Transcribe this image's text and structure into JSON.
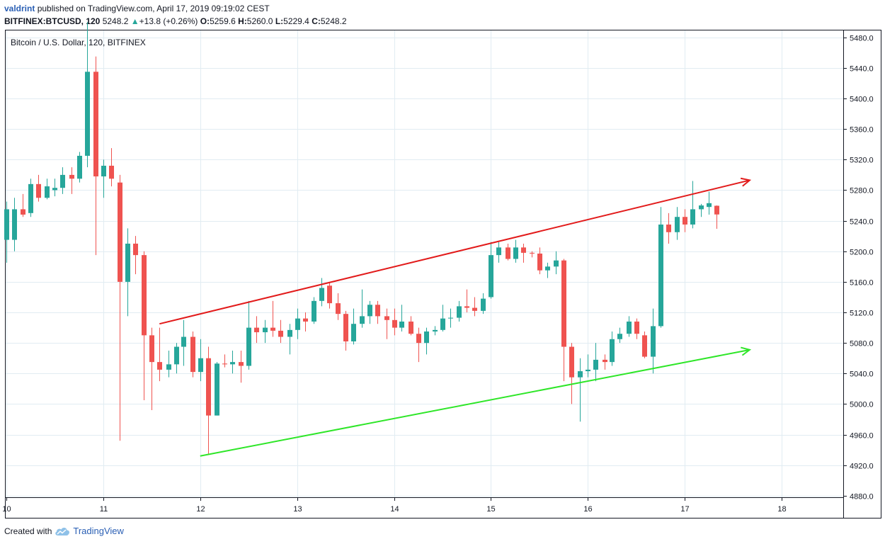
{
  "header": {
    "author": "valdrint",
    "published_text": "published on TradingView.com, April 17, 2019 09:19:02 CEST",
    "symbol": "BITFINEX:BTCUSD, 120",
    "last": "5248.2",
    "change_arrow": "▲",
    "change": "+13.8 (+0.26%)",
    "o_label": "O:",
    "o_value": "5259.6",
    "h_label": "H:",
    "h_value": "5260.0",
    "l_label": "L:",
    "l_value": "5229.4",
    "c_label": "C:",
    "c_value": "5248.2"
  },
  "footer": {
    "created_with": "Created with",
    "brand": "TradingView"
  },
  "colors": {
    "up": "#26a69a",
    "down": "#ef5350",
    "grid": "#e1ecf2",
    "resistance_line": "#e21b1b",
    "support_line": "#2ee628"
  },
  "chart_data": {
    "type": "candlestick",
    "legend": "Bitcoin / U.S. Dollar, 120, BITFINEX",
    "x_ticks": [
      "10",
      "11",
      "12",
      "13",
      "14",
      "15",
      "16",
      "17",
      "18"
    ],
    "x_tick_values": [
      10,
      11,
      12,
      13,
      14,
      15,
      16,
      17,
      18
    ],
    "xlim": [
      10,
      18.65
    ],
    "y_ticks": [
      "4880.0",
      "4920.0",
      "4960.0",
      "5000.0",
      "5040.0",
      "5080.0",
      "5120.0",
      "5160.0",
      "5200.0",
      "5240.0",
      "5280.0",
      "5320.0",
      "5360.0",
      "5400.0",
      "5440.0",
      "5480.0"
    ],
    "y_tick_values": [
      4880,
      4920,
      4960,
      5000,
      5040,
      5080,
      5120,
      5160,
      5200,
      5240,
      5280,
      5320,
      5360,
      5400,
      5440,
      5480
    ],
    "ylim": [
      4878,
      5490
    ],
    "grid": true,
    "candles": [
      {
        "t": 10.0,
        "o": 5215,
        "h": 5265,
        "l": 5185,
        "c": 5255
      },
      {
        "t": 10.08,
        "o": 5215,
        "h": 5270,
        "l": 5200,
        "c": 5255
      },
      {
        "t": 10.17,
        "o": 5255,
        "h": 5275,
        "l": 5245,
        "c": 5248
      },
      {
        "t": 10.25,
        "o": 5250,
        "h": 5295,
        "l": 5245,
        "c": 5288
      },
      {
        "t": 10.33,
        "o": 5288,
        "h": 5300,
        "l": 5265,
        "c": 5270
      },
      {
        "t": 10.42,
        "o": 5270,
        "h": 5295,
        "l": 5268,
        "c": 5285
      },
      {
        "t": 10.5,
        "o": 5280,
        "h": 5295,
        "l": 5272,
        "c": 5283
      },
      {
        "t": 10.58,
        "o": 5283,
        "h": 5310,
        "l": 5275,
        "c": 5300
      },
      {
        "t": 10.67,
        "o": 5300,
        "h": 5310,
        "l": 5275,
        "c": 5295
      },
      {
        "t": 10.75,
        "o": 5295,
        "h": 5330,
        "l": 5290,
        "c": 5325
      },
      {
        "t": 10.83,
        "o": 5325,
        "h": 5500,
        "l": 5310,
        "c": 5435
      },
      {
        "t": 10.92,
        "o": 5435,
        "h": 5455,
        "l": 5195,
        "c": 5298
      },
      {
        "t": 11.0,
        "o": 5298,
        "h": 5320,
        "l": 5270,
        "c": 5312
      },
      {
        "t": 11.08,
        "o": 5312,
        "h": 5335,
        "l": 5285,
        "c": 5295
      },
      {
        "t": 11.17,
        "o": 5290,
        "h": 5300,
        "l": 4952,
        "c": 5160
      },
      {
        "t": 11.25,
        "o": 5160,
        "h": 5230,
        "l": 5115,
        "c": 5210
      },
      {
        "t": 11.33,
        "o": 5210,
        "h": 5220,
        "l": 5170,
        "c": 5195
      },
      {
        "t": 11.42,
        "o": 5195,
        "h": 5200,
        "l": 5005,
        "c": 5090
      },
      {
        "t": 11.5,
        "o": 5090,
        "h": 5100,
        "l": 4992,
        "c": 5055
      },
      {
        "t": 11.58,
        "o": 5055,
        "h": 5100,
        "l": 5030,
        "c": 5045
      },
      {
        "t": 11.67,
        "o": 5045,
        "h": 5070,
        "l": 5035,
        "c": 5052
      },
      {
        "t": 11.75,
        "o": 5052,
        "h": 5080,
        "l": 5040,
        "c": 5075
      },
      {
        "t": 11.83,
        "o": 5075,
        "h": 5110,
        "l": 5050,
        "c": 5088
      },
      {
        "t": 11.92,
        "o": 5088,
        "h": 5095,
        "l": 5035,
        "c": 5042
      },
      {
        "t": 12.0,
        "o": 5042,
        "h": 5085,
        "l": 5030,
        "c": 5060
      },
      {
        "t": 12.08,
        "o": 5060,
        "h": 5075,
        "l": 4935,
        "c": 4985
      },
      {
        "t": 12.17,
        "o": 4985,
        "h": 5055,
        "l": 4985,
        "c": 5053
      },
      {
        "t": 12.25,
        "o": 5053,
        "h": 5065,
        "l": 5048,
        "c": 5052
      },
      {
        "t": 12.33,
        "o": 5052,
        "h": 5070,
        "l": 5040,
        "c": 5055
      },
      {
        "t": 12.42,
        "o": 5055,
        "h": 5070,
        "l": 5028,
        "c": 5050
      },
      {
        "t": 12.5,
        "o": 5050,
        "h": 5135,
        "l": 5045,
        "c": 5100
      },
      {
        "t": 12.58,
        "o": 5100,
        "h": 5115,
        "l": 5080,
        "c": 5094
      },
      {
        "t": 12.67,
        "o": 5094,
        "h": 5110,
        "l": 5080,
        "c": 5100
      },
      {
        "t": 12.75,
        "o": 5100,
        "h": 5135,
        "l": 5088,
        "c": 5096
      },
      {
        "t": 12.83,
        "o": 5096,
        "h": 5110,
        "l": 5080,
        "c": 5088
      },
      {
        "t": 12.92,
        "o": 5088,
        "h": 5105,
        "l": 5065,
        "c": 5097
      },
      {
        "t": 13.0,
        "o": 5097,
        "h": 5125,
        "l": 5085,
        "c": 5112
      },
      {
        "t": 13.08,
        "o": 5112,
        "h": 5120,
        "l": 5095,
        "c": 5108
      },
      {
        "t": 13.17,
        "o": 5108,
        "h": 5140,
        "l": 5105,
        "c": 5135
      },
      {
        "t": 13.25,
        "o": 5135,
        "h": 5165,
        "l": 5128,
        "c": 5152
      },
      {
        "t": 13.33,
        "o": 5155,
        "h": 5160,
        "l": 5125,
        "c": 5132
      },
      {
        "t": 13.42,
        "o": 5132,
        "h": 5145,
        "l": 5110,
        "c": 5118
      },
      {
        "t": 13.5,
        "o": 5118,
        "h": 5122,
        "l": 5070,
        "c": 5082
      },
      {
        "t": 13.58,
        "o": 5082,
        "h": 5125,
        "l": 5078,
        "c": 5105
      },
      {
        "t": 13.67,
        "o": 5105,
        "h": 5150,
        "l": 5100,
        "c": 5115
      },
      {
        "t": 13.75,
        "o": 5115,
        "h": 5135,
        "l": 5105,
        "c": 5130
      },
      {
        "t": 13.83,
        "o": 5130,
        "h": 5135,
        "l": 5105,
        "c": 5115
      },
      {
        "t": 13.92,
        "o": 5115,
        "h": 5125,
        "l": 5085,
        "c": 5110
      },
      {
        "t": 14.0,
        "o": 5110,
        "h": 5125,
        "l": 5090,
        "c": 5100
      },
      {
        "t": 14.08,
        "o": 5100,
        "h": 5130,
        "l": 5095,
        "c": 5108
      },
      {
        "t": 14.17,
        "o": 5108,
        "h": 5115,
        "l": 5090,
        "c": 5092
      },
      {
        "t": 14.25,
        "o": 5092,
        "h": 5100,
        "l": 5055,
        "c": 5080
      },
      {
        "t": 14.33,
        "o": 5080,
        "h": 5100,
        "l": 5065,
        "c": 5095
      },
      {
        "t": 14.42,
        "o": 5095,
        "h": 5102,
        "l": 5090,
        "c": 5097
      },
      {
        "t": 14.5,
        "o": 5097,
        "h": 5130,
        "l": 5095,
        "c": 5112
      },
      {
        "t": 14.58,
        "o": 5112,
        "h": 5125,
        "l": 5100,
        "c": 5113
      },
      {
        "t": 14.67,
        "o": 5113,
        "h": 5135,
        "l": 5108,
        "c": 5128
      },
      {
        "t": 14.75,
        "o": 5128,
        "h": 5150,
        "l": 5120,
        "c": 5126
      },
      {
        "t": 14.83,
        "o": 5126,
        "h": 5140,
        "l": 5115,
        "c": 5122
      },
      {
        "t": 14.92,
        "o": 5122,
        "h": 5145,
        "l": 5118,
        "c": 5138
      },
      {
        "t": 15.0,
        "o": 5140,
        "h": 5212,
        "l": 5138,
        "c": 5195
      },
      {
        "t": 15.08,
        "o": 5195,
        "h": 5212,
        "l": 5185,
        "c": 5205
      },
      {
        "t": 15.17,
        "o": 5205,
        "h": 5210,
        "l": 5188,
        "c": 5190
      },
      {
        "t": 15.25,
        "o": 5190,
        "h": 5215,
        "l": 5185,
        "c": 5205
      },
      {
        "t": 15.33,
        "o": 5205,
        "h": 5210,
        "l": 5185,
        "c": 5198
      },
      {
        "t": 15.42,
        "o": 5198,
        "h": 5200,
        "l": 5192,
        "c": 5197
      },
      {
        "t": 15.5,
        "o": 5197,
        "h": 5205,
        "l": 5170,
        "c": 5175
      },
      {
        "t": 15.58,
        "o": 5175,
        "h": 5185,
        "l": 5165,
        "c": 5180
      },
      {
        "t": 15.67,
        "o": 5180,
        "h": 5200,
        "l": 5170,
        "c": 5188
      },
      {
        "t": 15.75,
        "o": 5188,
        "h": 5190,
        "l": 5030,
        "c": 5075
      },
      {
        "t": 15.83,
        "o": 5075,
        "h": 5080,
        "l": 5000,
        "c": 5035
      },
      {
        "t": 15.92,
        "o": 5035,
        "h": 5060,
        "l": 4977,
        "c": 5043
      },
      {
        "t": 16.0,
        "o": 5043,
        "h": 5065,
        "l": 5035,
        "c": 5045
      },
      {
        "t": 16.08,
        "o": 5045,
        "h": 5080,
        "l": 5030,
        "c": 5058
      },
      {
        "t": 16.17,
        "o": 5058,
        "h": 5065,
        "l": 5045,
        "c": 5055
      },
      {
        "t": 16.25,
        "o": 5055,
        "h": 5095,
        "l": 5050,
        "c": 5085
      },
      {
        "t": 16.33,
        "o": 5085,
        "h": 5100,
        "l": 5080,
        "c": 5092
      },
      {
        "t": 16.42,
        "o": 5092,
        "h": 5115,
        "l": 5088,
        "c": 5108
      },
      {
        "t": 16.5,
        "o": 5108,
        "h": 5112,
        "l": 5085,
        "c": 5092
      },
      {
        "t": 16.58,
        "o": 5090,
        "h": 5095,
        "l": 5060,
        "c": 5062
      },
      {
        "t": 16.67,
        "o": 5062,
        "h": 5125,
        "l": 5040,
        "c": 5102
      },
      {
        "t": 16.75,
        "o": 5102,
        "h": 5258,
        "l": 5100,
        "c": 5235
      },
      {
        "t": 16.83,
        "o": 5235,
        "h": 5250,
        "l": 5210,
        "c": 5225
      },
      {
        "t": 16.92,
        "o": 5225,
        "h": 5258,
        "l": 5215,
        "c": 5245
      },
      {
        "t": 17.0,
        "o": 5245,
        "h": 5255,
        "l": 5225,
        "c": 5235
      },
      {
        "t": 17.08,
        "o": 5235,
        "h": 5292,
        "l": 5230,
        "c": 5255
      },
      {
        "t": 17.17,
        "o": 5255,
        "h": 5262,
        "l": 5245,
        "c": 5260
      },
      {
        "t": 17.25,
        "o": 5258,
        "h": 5278,
        "l": 5248,
        "c": 5263
      },
      {
        "t": 17.33,
        "o": 5259.6,
        "h": 5260.0,
        "l": 5229.4,
        "c": 5248.2
      }
    ],
    "trendlines": [
      {
        "name": "resistance",
        "color": "#e21b1b",
        "x1": 11.58,
        "y1": 5105,
        "x2": 17.67,
        "y2": 5293,
        "arrow": true
      },
      {
        "name": "support",
        "color": "#2ee628",
        "x1": 12.0,
        "y1": 4932,
        "x2": 17.67,
        "y2": 5071,
        "arrow": true
      }
    ]
  }
}
